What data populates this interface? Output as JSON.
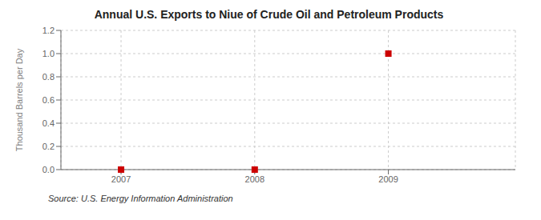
{
  "chart_data": {
    "type": "scatter",
    "title": "Annual U.S. Exports to Niue of Crude Oil and Petroleum Products",
    "ylabel": "Thousand Barrels per Day",
    "annotations": [
      "Source: U.S. Energy Information Administration"
    ],
    "x": [
      2007,
      2008,
      2009
    ],
    "values": [
      0.0,
      0.0,
      1.0
    ],
    "xlim": [
      2006.55,
      2009.95
    ],
    "ylim": [
      0.0,
      1.2
    ],
    "xticks": [
      2007,
      2008,
      2009
    ],
    "yticks": [
      {
        "value": 0.0,
        "label": "0.0"
      },
      0.2,
      0.4,
      0.6,
      0.8,
      {
        "value": 1.0,
        "label": "1.0"
      },
      1.2
    ],
    "color": "#cc0000",
    "marker": "square",
    "grid": true
  }
}
